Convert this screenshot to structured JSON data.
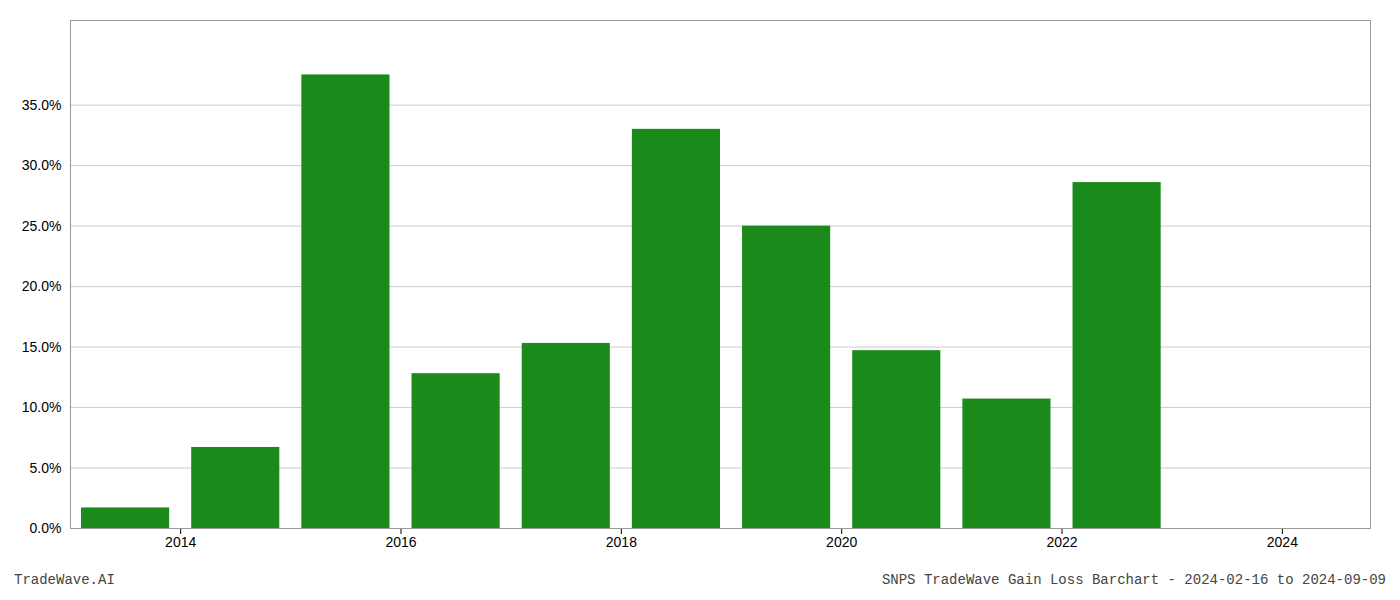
{
  "chart_data": {
    "type": "bar",
    "x": [
      2013.5,
      2014.5,
      2015.5,
      2016.5,
      2017.5,
      2018.5,
      2019.5,
      2020.5,
      2021.5,
      2022.5
    ],
    "values": [
      0.017,
      0.067,
      0.375,
      0.128,
      0.153,
      0.33,
      0.25,
      0.147,
      0.107,
      0.286
    ],
    "color": "#1a8a1a",
    "xlim": [
      2013.0,
      2024.8
    ],
    "xticks": [
      2014,
      2016,
      2018,
      2020,
      2022,
      2024
    ],
    "ylim": [
      0,
      0.42
    ],
    "yticks": [
      {
        "value": 0.0,
        "label": "0.0%"
      },
      {
        "value": 0.05,
        "label": "5.0%"
      },
      {
        "value": 0.1,
        "label": "10.0%"
      },
      {
        "value": 0.15,
        "label": "15.0%"
      },
      {
        "value": 0.2,
        "label": "20.0%"
      },
      {
        "value": 0.25,
        "label": "25.0%"
      },
      {
        "value": 0.3,
        "label": "30.0%"
      },
      {
        "value": 0.35,
        "label": "35.0%"
      }
    ],
    "grid": true,
    "annotations": [
      "TradeWave.AI",
      "SNPS TradeWave Gain Loss Barchart - 2024-02-16 to 2024-09-09"
    ]
  }
}
